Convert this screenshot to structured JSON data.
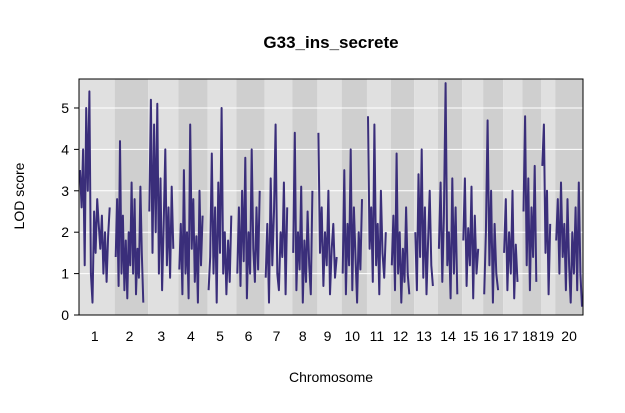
{
  "chart_data": {
    "type": "line",
    "title": "G33_ins_secrete",
    "xlabel": "Chromosome",
    "ylabel": "LOD score",
    "ylim": [
      0,
      5.7
    ],
    "yticks": [
      0,
      1,
      2,
      3,
      4,
      5
    ],
    "grid": "horizontal",
    "background": "alternating-gray-bands-per-chromosome",
    "colors": {
      "line": "#3a2e7a",
      "band_light": "#e0e0e0",
      "band_dark": "#cfcfcf",
      "grid": "#ffffff"
    },
    "chromosomes": [
      {
        "label": "1",
        "length": 195
      },
      {
        "label": "2",
        "length": 182
      },
      {
        "label": "3",
        "length": 160
      },
      {
        "label": "4",
        "length": 156
      },
      {
        "label": "5",
        "length": 152
      },
      {
        "label": "6",
        "length": 150
      },
      {
        "label": "7",
        "length": 145
      },
      {
        "label": "8",
        "length": 130
      },
      {
        "label": "9",
        "length": 125
      },
      {
        "label": "10",
        "length": 131
      },
      {
        "label": "11",
        "length": 122
      },
      {
        "label": "12",
        "length": 120
      },
      {
        "label": "13",
        "length": 121
      },
      {
        "label": "14",
        "length": 125
      },
      {
        "label": "15",
        "length": 104
      },
      {
        "label": "16",
        "length": 98
      },
      {
        "label": "17",
        "length": 95
      },
      {
        "label": "18",
        "length": 91
      },
      {
        "label": "19",
        "length": 61
      },
      {
        "label": "20",
        "length": 171
      }
    ],
    "series": [
      {
        "values": [
          [
            3.5,
            2.6,
            4.0,
            1.2,
            5.0,
            3.0,
            5.4,
            1.0,
            0.3,
            2.5,
            1.5,
            2.8,
            2.2,
            1.6,
            2.4,
            1.0,
            2.0,
            0.8,
            1.9,
            2.6
          ],
          [
            1.4,
            2.8,
            0.7,
            4.2,
            1.0,
            2.4,
            0.6,
            1.8,
            0.4,
            2.0,
            1.2,
            3.2,
            1.0,
            2.8,
            0.5,
            1.6,
            0.9,
            3.1,
            1.5,
            0.3
          ],
          [
            2.5,
            5.2,
            1.5,
            4.6,
            2.0,
            5.1,
            1.0,
            3.3,
            0.6,
            2.2,
            4.0,
            1.2,
            2.6,
            0.9,
            3.1,
            1.6
          ],
          [
            1.1,
            2.2,
            0.5,
            3.5,
            1.0,
            2.0,
            0.4,
            4.6,
            1.6,
            2.8,
            0.8,
            1.9,
            0.3,
            3.0,
            1.2,
            2.4
          ],
          [
            0.6,
            1.4,
            3.9,
            1.0,
            2.6,
            0.3,
            3.2,
            1.5,
            5.0,
            1.0,
            2.0,
            0.5,
            1.8,
            0.8,
            2.4
          ],
          [
            1.0,
            2.6,
            0.7,
            3.0,
            1.3,
            3.8,
            0.4,
            2.0,
            1.0,
            4.0,
            1.6,
            0.8,
            2.6,
            1.1,
            3.0
          ],
          [
            0.9,
            2.2,
            0.3,
            3.3,
            1.2,
            2.5,
            4.6,
            1.0,
            0.6,
            2.0,
            1.4,
            3.2,
            0.5,
            2.6
          ],
          [
            1.5,
            4.4,
            0.6,
            2.0,
            1.1,
            3.1,
            0.3,
            1.8,
            0.8,
            2.5,
            1.2,
            0.5,
            3.0
          ],
          [
            4.4,
            1.5,
            2.6,
            0.7,
            2.0,
            1.2,
            3.0,
            0.5,
            1.6,
            2.2,
            0.9,
            1.4
          ],
          [
            1.0,
            3.5,
            0.5,
            2.2,
            1.2,
            4.0,
            0.6,
            2.6,
            1.4,
            0.3,
            2.0,
            1.1,
            2.8
          ],
          [
            4.8,
            1.6,
            2.6,
            0.8,
            4.6,
            1.2,
            2.2,
            0.5,
            3.0,
            1.5,
            0.9,
            2.0
          ],
          [
            1.2,
            2.4,
            0.6,
            3.9,
            1.0,
            2.0,
            0.3,
            1.6,
            0.8,
            2.6,
            1.0,
            0.5
          ],
          [
            2.0,
            0.6,
            3.4,
            1.4,
            4.0,
            0.9,
            2.6,
            0.5,
            1.8,
            3.0,
            1.2,
            0.7
          ],
          [
            1.6,
            3.2,
            0.8,
            2.4,
            5.6,
            1.2,
            2.0,
            0.4,
            3.3,
            1.0,
            2.6,
            0.5
          ],
          [
            1.8,
            3.3,
            0.7,
            2.1,
            1.2,
            3.1,
            0.4,
            2.4,
            1.0,
            1.6
          ],
          [
            0.5,
            2.0,
            4.7,
            1.2,
            3.0,
            0.3,
            2.2,
            1.0,
            0.6
          ],
          [
            1.5,
            2.8,
            0.6,
            2.0,
            1.0,
            3.0,
            0.4,
            1.7,
            0.8
          ],
          [
            2.5,
            4.8,
            1.2,
            3.3,
            0.6,
            2.6,
            1.4,
            3.6,
            0.8
          ],
          [
            3.6,
            4.6,
            1.5,
            3.0,
            0.5,
            2.2
          ],
          [
            1.8,
            2.8,
            1.0,
            3.2,
            1.4,
            2.2,
            0.6,
            2.8,
            1.2,
            0.3,
            2.0,
            1.0,
            2.6,
            0.6,
            3.2,
            1.0,
            0.2
          ]
        ]
      }
    ]
  }
}
